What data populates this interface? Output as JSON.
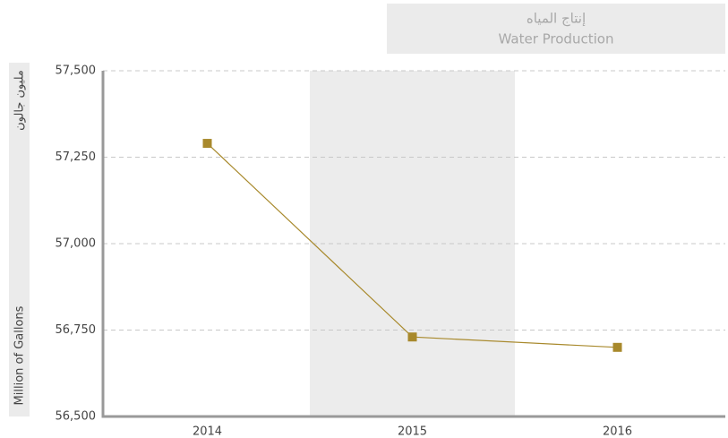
{
  "chart_data": {
    "type": "line",
    "y_label": "Million of Gallons",
    "y_label_ar": "مليون جالون",
    "categories": [
      "2014",
      "2015",
      "2016"
    ],
    "series": [
      {
        "name": "Water Production",
        "name_ar": "إنتاج المياه",
        "color": "#a8892c",
        "values": [
          57290,
          56730,
          56700
        ]
      }
    ],
    "ylim": [
      56500,
      57500
    ],
    "yticks": [
      {
        "value": 56500,
        "label": "56,500"
      },
      {
        "value": 56750,
        "label": "56,750"
      },
      {
        "value": 57000,
        "label": "57,000"
      },
      {
        "value": 57250,
        "label": "57,250"
      },
      {
        "value": 57500,
        "label": "57,500"
      }
    ],
    "grid": true
  }
}
